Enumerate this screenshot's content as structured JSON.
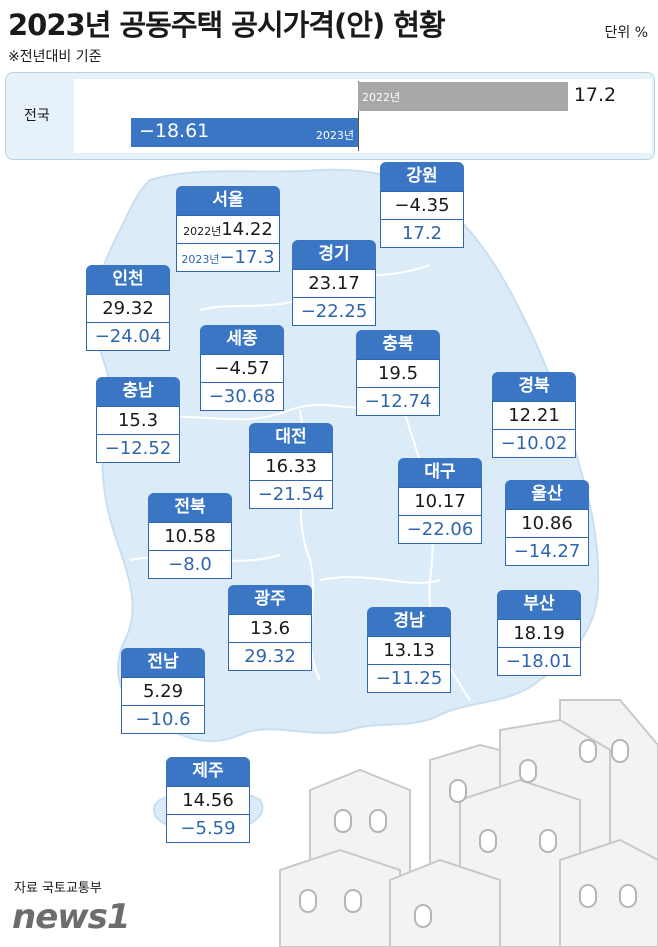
{
  "title": "2023년 공동주택 공시가격(안) 현황",
  "note": "※전년대비 기준",
  "unit": "단위 %",
  "source": "자료 국토교통부",
  "logo": "news1",
  "colors": {
    "bar2022": "#a8a8a8",
    "bar2023": "#3a76c4",
    "card": "#3a76c4",
    "map": "#dcebf8"
  },
  "national": {
    "label": "전국",
    "year2022": "2022년",
    "year2023": "2023년",
    "value2022": 17.2,
    "value2023": -18.61,
    "label2022": "17.2",
    "label2023": "−18.61"
  },
  "seoul_labels": {
    "y2022": "2022년",
    "y2023": "2023년"
  },
  "chart_data": {
    "type": "bar",
    "categories": [
      "서울",
      "경기",
      "인천",
      "강원",
      "세종",
      "충북",
      "충남",
      "대전",
      "경북",
      "대구",
      "울산",
      "전북",
      "광주",
      "경남",
      "부산",
      "전남",
      "제주"
    ],
    "series": [
      {
        "name": "2022년",
        "values": [
          14.22,
          23.17,
          29.32,
          -4.35,
          -4.57,
          19.5,
          15.3,
          16.33,
          12.21,
          10.17,
          10.86,
          10.58,
          13.6,
          13.13,
          18.19,
          5.29,
          14.56
        ]
      },
      {
        "name": "2023년",
        "values": [
          -17.3,
          -22.25,
          -24.04,
          17.2,
          -30.68,
          -12.74,
          -12.52,
          -21.54,
          -10.02,
          -22.06,
          -14.27,
          -8.0,
          29.32,
          -11.25,
          -18.01,
          -10.6,
          -5.59
        ]
      }
    ]
  },
  "regions": [
    {
      "name": "서울",
      "v2022": "14.22",
      "v2023": "−17.3"
    },
    {
      "name": "경기",
      "v2022": "23.17",
      "v2023": "−22.25"
    },
    {
      "name": "인천",
      "v2022": "29.32",
      "v2023": "−24.04"
    },
    {
      "name": "강원",
      "v2022": "−4.35",
      "v2023": "17.2"
    },
    {
      "name": "세종",
      "v2022": "−4.57",
      "v2023": "−30.68"
    },
    {
      "name": "충북",
      "v2022": "19.5",
      "v2023": "−12.74"
    },
    {
      "name": "충남",
      "v2022": "15.3",
      "v2023": "−12.52"
    },
    {
      "name": "대전",
      "v2022": "16.33",
      "v2023": "−21.54"
    },
    {
      "name": "경북",
      "v2022": "12.21",
      "v2023": "−10.02"
    },
    {
      "name": "대구",
      "v2022": "10.17",
      "v2023": "−22.06"
    },
    {
      "name": "울산",
      "v2022": "10.86",
      "v2023": "−14.27"
    },
    {
      "name": "전북",
      "v2022": "10.58",
      "v2023": "−8.0"
    },
    {
      "name": "광주",
      "v2022": "13.6",
      "v2023": "29.32"
    },
    {
      "name": "경남",
      "v2022": "13.13",
      "v2023": "−11.25"
    },
    {
      "name": "부산",
      "v2022": "18.19",
      "v2023": "−18.01"
    },
    {
      "name": "전남",
      "v2022": "5.29",
      "v2023": "−10.6"
    },
    {
      "name": "제주",
      "v2022": "14.56",
      "v2023": "−5.59"
    }
  ]
}
